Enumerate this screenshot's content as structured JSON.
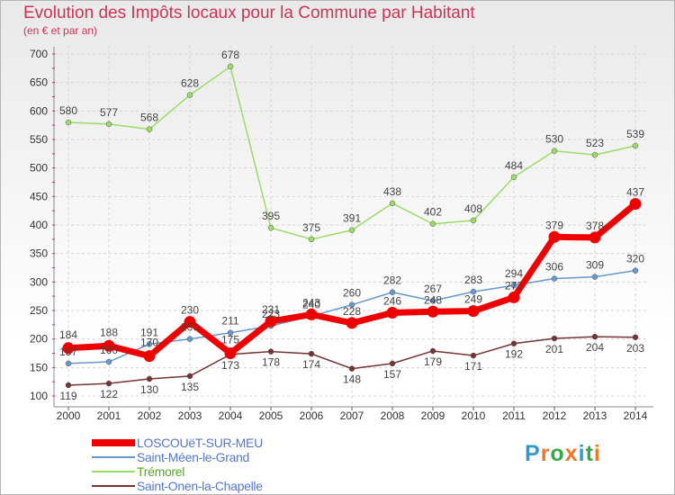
{
  "title": "Evolution des Impôts locaux pour la Commune par Habitant",
  "subtitle": "(en € et par an)",
  "chart_data": {
    "type": "line",
    "title": "Evolution des Impôts locaux pour la Commune par Habitant",
    "subtitle": "(en € et par an)",
    "xlabel": "",
    "ylabel": "",
    "x": [
      "2000",
      "2001",
      "2002",
      "2003",
      "2004",
      "2005",
      "2006",
      "2007",
      "2008",
      "2009",
      "2010",
      "2011",
      "2012",
      "2013",
      "2014"
    ],
    "ylim": [
      100,
      700
    ],
    "yticks": [
      100,
      150,
      200,
      250,
      300,
      350,
      400,
      450,
      500,
      550,
      600,
      650,
      700
    ],
    "grid": true,
    "legend_position": "bottom-left",
    "series": [
      {
        "name": "LOSCOUëT-SUR-MEU",
        "color": "#ee0000",
        "values": [
          184,
          188,
          170,
          230,
          175,
          231,
          243,
          228,
          246,
          248,
          249,
          273,
          379,
          378,
          437
        ]
      },
      {
        "name": "Saint-Méen-le-Grand",
        "color": "#6699cc",
        "values": [
          157,
          160,
          191,
          200,
          211,
          223,
          240,
          260,
          282,
          267,
          283,
          294,
          306,
          309,
          320
        ]
      },
      {
        "name": "Trémorel",
        "color": "#99dd66",
        "values": [
          580,
          577,
          568,
          628,
          678,
          395,
          375,
          391,
          438,
          402,
          408,
          484,
          530,
          523,
          539
        ]
      },
      {
        "name": "Saint-Onen-la-Chapelle",
        "color": "#773333",
        "values": [
          119,
          122,
          130,
          135,
          173,
          178,
          174,
          148,
          157,
          179,
          171,
          192,
          201,
          204,
          203
        ]
      }
    ]
  },
  "logo": {
    "text": "Proxiti",
    "colors": [
      "#3399cc",
      "#ee7722",
      "#33aa44",
      "#ee7722",
      "#3399cc",
      "#33aa44",
      "#ee7722"
    ]
  }
}
